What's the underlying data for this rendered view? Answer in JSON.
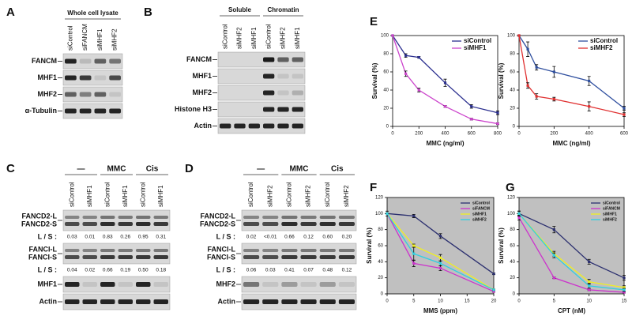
{
  "panel_labels": [
    "A",
    "B",
    "C",
    "D",
    "E",
    "F",
    "G"
  ],
  "blots": [
    {
      "header": [
        "Whole cell lysate"
      ],
      "lanes": [
        "siControl",
        "siFANCM",
        "siMHF1",
        "siMHF2"
      ],
      "rows": [
        {
          "labels": [
            "FANCM"
          ]
        },
        {
          "labels": [
            "MHF1"
          ]
        },
        {
          "labels": [
            "MHF2"
          ]
        },
        {
          "labels": [
            "α-Tubulin"
          ]
        }
      ]
    },
    {
      "header": [
        "Soluble",
        "Chromatin"
      ],
      "lanes": [
        "siControl",
        "siMHF2",
        "siMHF1",
        "siControl",
        "siMHF2",
        "siMHF1"
      ],
      "rows": [
        {
          "labels": [
            "FANCM"
          ]
        },
        {
          "labels": [
            "MHF1"
          ]
        },
        {
          "labels": [
            "MHF2"
          ]
        },
        {
          "labels": [
            "Histone H3"
          ]
        },
        {
          "labels": [
            "Actin"
          ]
        }
      ]
    },
    {
      "header": [
        "—",
        "MMC",
        "Cis"
      ],
      "lanes": [
        "siControl",
        "siMHF1",
        "siControl",
        "siMHF1",
        "siControl",
        "siMHF1"
      ],
      "rows": [
        {
          "labels": [
            "FANCD2-L",
            "FANCD2-S"
          ],
          "ratio_label": "L / S :",
          "ratios": [
            "0.03",
            "0.01",
            "0.83",
            "0.26",
            "0.95",
            "0.31"
          ]
        },
        {
          "labels": [
            "FANCI-L",
            "FANCI-S"
          ],
          "ratio_label": "L / S :",
          "ratios": [
            "0.04",
            "0.02",
            "0.66",
            "0.19",
            "0.50",
            "0.18"
          ]
        },
        {
          "labels": [
            "MHF1"
          ]
        },
        {
          "labels": [
            "Actin"
          ]
        }
      ]
    },
    {
      "header": [
        "—",
        "MMC",
        "Cis"
      ],
      "lanes": [
        "siControl",
        "siMHF2",
        "siControl",
        "siMHF2",
        "siControl",
        "siMHF2"
      ],
      "rows": [
        {
          "labels": [
            "FANCD2-L",
            "FANCD2-S"
          ],
          "ratio_label": "L / S :",
          "ratios": [
            "0.02",
            "<0.01",
            "0.66",
            "0.12",
            "0.60",
            "0.20"
          ]
        },
        {
          "labels": [
            "FANCI-L",
            "FANCI-S"
          ],
          "ratio_label": "L / S :",
          "ratios": [
            "0.06",
            "0.03",
            "0.41",
            "0.07",
            "0.48",
            "0.12"
          ]
        },
        {
          "labels": [
            "MHF2"
          ]
        },
        {
          "labels": [
            "Actin"
          ]
        }
      ]
    }
  ],
  "chart_data": [
    {
      "type": "line",
      "xlabel": "MMC (ng/ml)",
      "ylabel": "Survival (%)",
      "x": [
        0,
        100,
        200,
        400,
        600,
        800
      ],
      "xlim": [
        0,
        800
      ],
      "xticks": [
        0,
        200,
        400,
        600,
        800
      ],
      "ylim": [
        0,
        100
      ],
      "yticks": [
        0,
        20,
        40,
        60,
        80,
        100
      ],
      "legend": "upper right",
      "series": [
        {
          "name": "siControl",
          "color": "#2b2f8f",
          "values": [
            100,
            78,
            76,
            48,
            22,
            15
          ],
          "errors": [
            0,
            2,
            1,
            4,
            2,
            2
          ]
        },
        {
          "name": "siMHF1",
          "color": "#cc44cc",
          "values": [
            100,
            58,
            40,
            22,
            8,
            3
          ],
          "errors": [
            0,
            3,
            2,
            1,
            1,
            1
          ]
        }
      ]
    },
    {
      "type": "line",
      "xlabel": "MMC (ng/ml)",
      "ylabel": "Survival (%)",
      "x": [
        0,
        50,
        100,
        200,
        400,
        600
      ],
      "xlim": [
        0,
        600
      ],
      "xticks": [
        0,
        200,
        400,
        600
      ],
      "ylim": [
        0,
        100
      ],
      "yticks": [
        0,
        20,
        40,
        60,
        80,
        100
      ],
      "legend": "upper right",
      "series": [
        {
          "name": "siControl",
          "color": "#2f4f9f",
          "values": [
            100,
            85,
            65,
            60,
            50,
            20
          ],
          "errors": [
            0,
            8,
            3,
            6,
            5,
            2
          ]
        },
        {
          "name": "siMHF2",
          "color": "#e03030",
          "values": [
            100,
            45,
            33,
            30,
            22,
            13
          ],
          "errors": [
            0,
            3,
            3,
            2,
            5,
            2
          ]
        }
      ]
    },
    {
      "type": "line",
      "xlabel": "MMS (ppm)",
      "ylabel": "Survival (%)",
      "x": [
        0,
        5,
        10,
        20
      ],
      "background": "#c0c0c0",
      "xlim": [
        0,
        20
      ],
      "xticks": [
        0,
        5,
        10,
        15,
        20
      ],
      "ylim": [
        0,
        120
      ],
      "yticks": [
        0,
        20,
        40,
        60,
        80,
        100,
        120
      ],
      "legend": "upper right",
      "series": [
        {
          "name": "siControl",
          "color": "#2b2f6f",
          "values": [
            100,
            97,
            72,
            25
          ],
          "errors": [
            3,
            2,
            3,
            1
          ]
        },
        {
          "name": "siFANCM",
          "color": "#cc33cc",
          "values": [
            100,
            38,
            32,
            3
          ],
          "errors": [
            0,
            4,
            3,
            1
          ]
        },
        {
          "name": "siMHF1",
          "color": "#f0f020",
          "values": [
            100,
            60,
            45,
            5
          ],
          "errors": [
            0,
            2,
            4,
            1
          ]
        },
        {
          "name": "siMHF2",
          "color": "#30d0e0",
          "values": [
            100,
            50,
            38,
            5
          ],
          "errors": [
            0,
            8,
            3,
            1
          ]
        }
      ]
    },
    {
      "type": "line",
      "xlabel": "CPT (nM)",
      "ylabel": "Survival (%)",
      "x": [
        0,
        5,
        10,
        15
      ],
      "background": "#c0c0c0",
      "xlim": [
        0,
        15
      ],
      "xticks": [
        0,
        5,
        10,
        15
      ],
      "ylim": [
        0,
        120
      ],
      "yticks": [
        0,
        20,
        40,
        60,
        80,
        100,
        120
      ],
      "legend": "upper right",
      "series": [
        {
          "name": "siControl",
          "color": "#2b2f6f",
          "values": [
            100,
            80,
            40,
            20
          ],
          "errors": [
            3,
            4,
            3,
            3
          ]
        },
        {
          "name": "siFANCM",
          "color": "#cc33cc",
          "values": [
            95,
            20,
            5,
            2
          ],
          "errors": [
            3,
            1,
            1,
            1
          ]
        },
        {
          "name": "siMHF1",
          "color": "#f0f020",
          "values": [
            100,
            50,
            15,
            8
          ],
          "errors": [
            3,
            3,
            3,
            2
          ]
        },
        {
          "name": "siMHF2",
          "color": "#30d0e0",
          "values": [
            100,
            48,
            10,
            5
          ],
          "errors": [
            3,
            3,
            3,
            2
          ]
        }
      ]
    }
  ]
}
